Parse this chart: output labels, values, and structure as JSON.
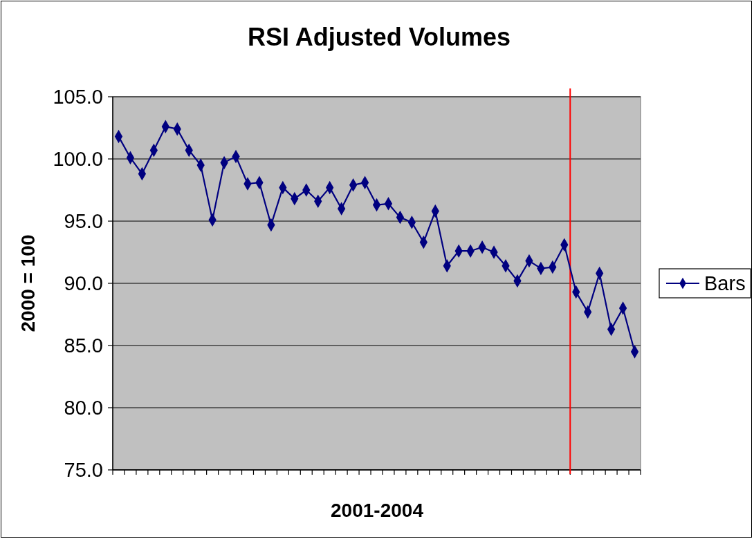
{
  "chart_data": {
    "type": "line",
    "title": "RSI Adjusted Volumes",
    "xlabel": "2001-2004",
    "ylabel": "2000 = 100",
    "categories": [
      null,
      null,
      null,
      null,
      null,
      null,
      null,
      null,
      null,
      null,
      null,
      null,
      null,
      null,
      null,
      null,
      null,
      null,
      null,
      null,
      null,
      null,
      null,
      null,
      null,
      null,
      null,
      null,
      null,
      null,
      null,
      null,
      null,
      null,
      null,
      null,
      null,
      null,
      null,
      null,
      null,
      null,
      null,
      null,
      null
    ],
    "series": [
      {
        "name": "Bars",
        "color": "#000080",
        "values": [
          101.8,
          100.1,
          98.8,
          100.7,
          102.6,
          102.4,
          100.7,
          99.5,
          95.1,
          99.7,
          100.2,
          98.0,
          98.1,
          94.7,
          97.7,
          96.8,
          97.5,
          96.6,
          97.7,
          96.0,
          97.9,
          98.1,
          96.3,
          96.4,
          95.3,
          94.9,
          93.3,
          95.8,
          91.4,
          92.6,
          92.6,
          92.9,
          92.5,
          91.4,
          90.2,
          91.8,
          91.2,
          91.3,
          93.1,
          89.3,
          87.7,
          90.8,
          86.3,
          88.0,
          84.5
        ]
      }
    ],
    "ylim": [
      75,
      105
    ],
    "yticks": [
      {
        "value": 75,
        "label": "75.0"
      },
      {
        "value": 80,
        "label": "80.0"
      },
      {
        "value": 85,
        "label": "85.0"
      },
      {
        "value": 90,
        "label": "90.0"
      },
      {
        "value": 95,
        "label": "95.0"
      },
      {
        "value": 100,
        "label": "100.0"
      },
      {
        "value": 105,
        "label": "105.0"
      }
    ],
    "grid": "y",
    "legend": "right",
    "marker": "diamond",
    "line_style": "solid"
  }
}
